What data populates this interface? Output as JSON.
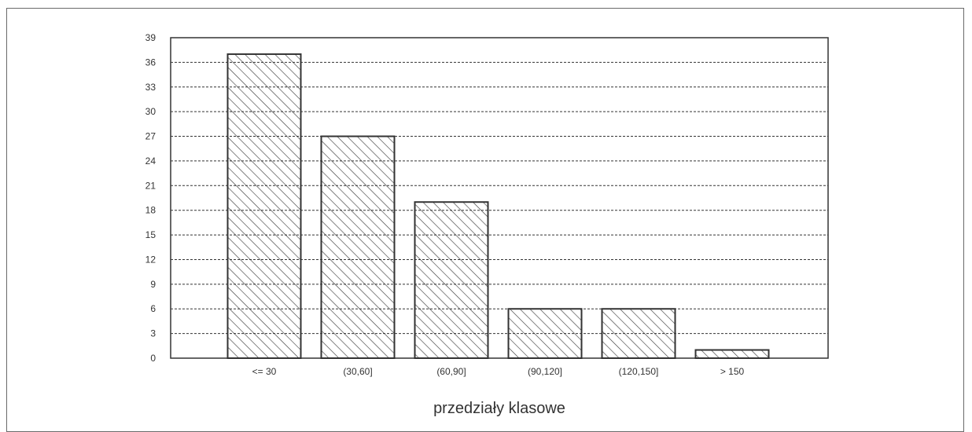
{
  "chart_data": {
    "type": "bar",
    "title": "",
    "xlabel": "przedziały klasowe",
    "ylabel": "",
    "categories": [
      "<= 30",
      "(30,60]",
      "(60,90]",
      "(90,120]",
      "(120,150]",
      "> 150"
    ],
    "values": [
      37,
      27,
      19,
      6,
      6,
      1
    ],
    "ylim": [
      0,
      39
    ],
    "yticks": [
      0,
      3,
      6,
      9,
      12,
      15,
      18,
      21,
      24,
      27,
      30,
      33,
      36,
      39
    ],
    "grid": true,
    "bar_fill": "diagonal-hatch",
    "colors": {
      "bar_edge": "#333333",
      "axis": "#333333",
      "grid": "#333333",
      "text": "#333333"
    }
  }
}
